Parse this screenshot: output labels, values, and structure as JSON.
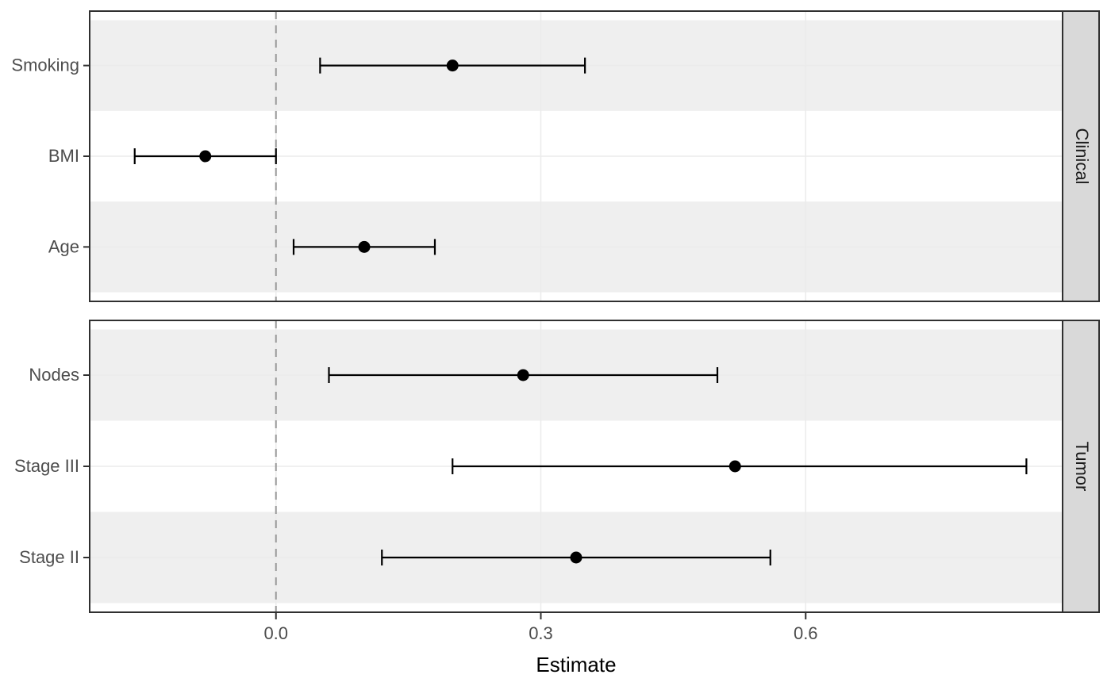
{
  "chart_data": {
    "type": "scatter",
    "subtype": "forest-pointrange",
    "title": "",
    "xlabel": "Estimate",
    "ylabel": "",
    "legend": "none",
    "grid": "major-only",
    "facets": [
      {
        "label": "Clinical",
        "rows": [
          {
            "label": "Smoking",
            "estimate": 0.2,
            "lower": 0.05,
            "upper": 0.35
          },
          {
            "label": "BMI",
            "estimate": -0.08,
            "lower": -0.16,
            "upper": 0.0
          },
          {
            "label": "Age",
            "estimate": 0.1,
            "lower": 0.02,
            "upper": 0.18
          }
        ]
      },
      {
        "label": "Tumor",
        "rows": [
          {
            "label": "Nodes",
            "estimate": 0.28,
            "lower": 0.06,
            "upper": 0.5
          },
          {
            "label": "Stage III",
            "estimate": 0.52,
            "lower": 0.2,
            "upper": 0.85
          },
          {
            "label": "Stage II",
            "estimate": 0.34,
            "lower": 0.12,
            "upper": 0.56
          }
        ]
      }
    ],
    "x_axis": {
      "label": "Estimate",
      "ticks": [
        0.0,
        0.3,
        0.6
      ],
      "tick_labels": [
        "0.0",
        "0.3",
        "0.6"
      ],
      "range": [
        -0.211,
        0.891
      ]
    },
    "reference_line": {
      "x": 0.0,
      "style": "dashed"
    },
    "colors": {
      "point": "#000000",
      "interval": "#000000",
      "stripe_band": "#EFEFEF",
      "panel_background": "#FFFFFF",
      "panel_border": "#303030",
      "gridline": "#EBEBEB",
      "reference_dashed": "#999999",
      "axis_text": "#4D4D4D",
      "axis_title": "#000000",
      "strip_background": "#D9D9D9",
      "strip_text": "#1A1A1A"
    }
  }
}
